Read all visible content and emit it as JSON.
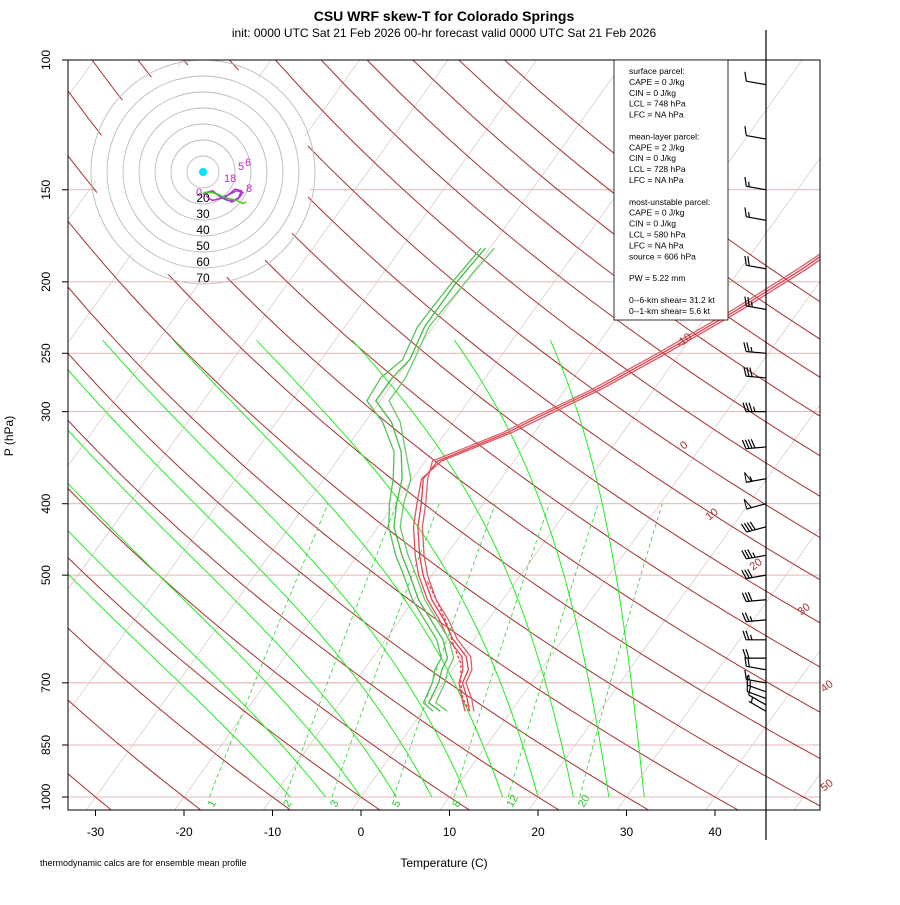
{
  "chart_data": {
    "type": "line",
    "title": "CSU WRF skew-T for Colorado Springs",
    "subtitle": "init: 0000 UTC Sat 21 Feb 2026     00-hr forecast valid 0000 UTC Sat 21 Feb 2026",
    "xlabel": "Temperature (C)",
    "ylabel": "P (hPa)",
    "footnote": "thermodynamic calcs are for ensemble mean profile",
    "x_ticks": [
      -30,
      -20,
      -10,
      0,
      10,
      20,
      30,
      40
    ],
    "pressure_ticks": [
      100,
      150,
      200,
      250,
      300,
      400,
      500,
      700,
      850,
      1000
    ],
    "xlim": [
      -33,
      46
    ],
    "plim": [
      1050,
      100
    ],
    "y_scale": "log",
    "dry_adiabat_labels": [
      "-10",
      "0",
      "10",
      "20",
      "30",
      "40",
      "50"
    ],
    "mixing_ratio_labels": [
      "1",
      "2",
      "3",
      "5",
      "8",
      "12",
      "20"
    ],
    "hodograph_ring_labels": [
      "20",
      "30",
      "40",
      "50",
      "60",
      "70"
    ],
    "stats": {
      "lines": [
        "surface parcel:",
        "CAPE = 0 J/kg",
        "CIN = 0 J/kg",
        "LCL = 748 hPa",
        "LFC = NA hPa",
        "",
        "mean-layer parcel:",
        "CAPE = 2 J/kg",
        "CIN = 0 J/kg",
        "LCL = 728 hPa",
        "LFC = NA hPa",
        "",
        "most-unstable parcel:",
        "CAPE = 0 J/kg",
        "CIN = 0 J/kg",
        "LCL = 580 hPa",
        "LFC = NA hPa",
        "source = 606 hPa",
        "",
        "PW =  5.22 mm",
        "",
        "0--6-km shear= 31.2 kt",
        "0--1-km shear= 5.6 kt"
      ]
    },
    "series": [
      {
        "kind": "temperature",
        "color": "#e0404a",
        "points": [
          [
            5.3,
            765
          ],
          [
            4,
            735
          ],
          [
            2.2,
            700
          ],
          [
            1.8,
            672
          ],
          [
            0.5,
            645
          ],
          [
            -2.5,
            610
          ],
          [
            -5,
            575
          ],
          [
            -8,
            540
          ],
          [
            -11,
            500
          ],
          [
            -13,
            470
          ],
          [
            -15.5,
            430
          ],
          [
            -17,
            400
          ],
          [
            -18.8,
            370
          ],
          [
            -18.6,
            350
          ],
          [
            -13,
            320
          ],
          [
            -10.8,
            305
          ],
          [
            -6.5,
            280
          ],
          [
            -2,
            250
          ],
          [
            3,
            218
          ],
          [
            7,
            192
          ],
          [
            11,
            165
          ],
          [
            12.2,
            150
          ],
          [
            13.5,
            140
          ],
          [
            15.5,
            128
          ],
          [
            17.5,
            115
          ],
          [
            19,
            108
          ]
        ]
      },
      {
        "kind": "temperature",
        "color": "#e05060",
        "points": [
          [
            4.8,
            765
          ],
          [
            3.4,
            735
          ],
          [
            1.8,
            700
          ],
          [
            1.2,
            672
          ],
          [
            0,
            645
          ],
          [
            -3,
            610
          ],
          [
            -5.5,
            575
          ],
          [
            -8.5,
            540
          ],
          [
            -11.5,
            500
          ],
          [
            -13.5,
            470
          ],
          [
            -16,
            430
          ],
          [
            -17.5,
            400
          ],
          [
            -19,
            370
          ],
          [
            -18.2,
            350
          ],
          [
            -12.5,
            320
          ],
          [
            -10.2,
            305
          ],
          [
            -6,
            280
          ],
          [
            -1.5,
            250
          ],
          [
            3.5,
            218
          ],
          [
            7.5,
            192
          ],
          [
            11.3,
            165
          ],
          [
            12.6,
            150
          ],
          [
            14,
            140
          ],
          [
            16.2,
            128
          ],
          [
            18.5,
            115
          ],
          [
            19.8,
            108
          ]
        ]
      },
      {
        "kind": "temperature",
        "color": "#d8606a",
        "points": [
          [
            5.8,
            765
          ],
          [
            4.5,
            735
          ],
          [
            2.6,
            700
          ],
          [
            2.2,
            672
          ],
          [
            1,
            645
          ],
          [
            -2,
            610
          ],
          [
            -4.5,
            575
          ],
          [
            -7.5,
            540
          ],
          [
            -10.5,
            500
          ],
          [
            -12.5,
            470
          ],
          [
            -15,
            430
          ],
          [
            -16.5,
            400
          ],
          [
            -18.3,
            370
          ],
          [
            -19.2,
            350
          ],
          [
            -13.5,
            320
          ],
          [
            -11.3,
            305
          ],
          [
            -7,
            280
          ],
          [
            -2.5,
            250
          ],
          [
            2.5,
            218
          ],
          [
            6.5,
            192
          ],
          [
            10.7,
            165
          ],
          [
            11.9,
            150
          ],
          [
            13.2,
            140
          ],
          [
            15,
            128
          ],
          [
            17,
            115
          ],
          [
            18.5,
            108
          ]
        ]
      },
      {
        "kind": "parcel",
        "color": "#e0404a",
        "dashed": true,
        "points": [
          [
            5.3,
            765
          ],
          [
            3.5,
            735
          ],
          [
            2,
            700
          ],
          [
            0.5,
            660
          ],
          [
            -2,
            620
          ],
          [
            -4.5,
            580
          ],
          [
            -7.5,
            540
          ],
          [
            -10,
            510
          ]
        ]
      },
      {
        "kind": "dewpoint",
        "color": "#44bb44",
        "points": [
          [
            2,
            765
          ],
          [
            0,
            745
          ],
          [
            -0.5,
            700
          ],
          [
            -1.2,
            672
          ],
          [
            -1.5,
            648
          ],
          [
            -3.5,
            612
          ],
          [
            -6.5,
            575
          ],
          [
            -9.5,
            540
          ],
          [
            -12.5,
            500
          ],
          [
            -15,
            470
          ],
          [
            -18.2,
            430
          ],
          [
            -19.8,
            400
          ],
          [
            -21.2,
            370
          ],
          [
            -23.5,
            340
          ],
          [
            -27,
            310
          ],
          [
            -30.5,
            290
          ],
          [
            -30.5,
            270
          ],
          [
            -30,
            255
          ],
          [
            -31,
            230
          ],
          [
            -31,
            200
          ],
          [
            -30.5,
            180
          ]
        ]
      },
      {
        "kind": "dewpoint",
        "color": "#66cc66",
        "points": [
          [
            2.8,
            765
          ],
          [
            0.8,
            745
          ],
          [
            0.2,
            700
          ],
          [
            -0.5,
            672
          ],
          [
            -0.8,
            648
          ],
          [
            -2.8,
            612
          ],
          [
            -5.8,
            575
          ],
          [
            -8.8,
            540
          ],
          [
            -11.8,
            500
          ],
          [
            -14.3,
            470
          ],
          [
            -17.5,
            430
          ],
          [
            -19,
            400
          ],
          [
            -20.2,
            370
          ],
          [
            -23,
            340
          ],
          [
            -26,
            310
          ],
          [
            -29,
            290
          ],
          [
            -29,
            270
          ],
          [
            -29.5,
            255
          ],
          [
            -30.5,
            230
          ],
          [
            -30,
            200
          ],
          [
            -29.5,
            180
          ]
        ]
      },
      {
        "kind": "dewpoint",
        "color": "#55c055",
        "points": [
          [
            1.2,
            765
          ],
          [
            -0.6,
            745
          ],
          [
            -1.2,
            700
          ],
          [
            -2,
            672
          ],
          [
            -2.2,
            648
          ],
          [
            -4.2,
            612
          ],
          [
            -7.2,
            575
          ],
          [
            -10.2,
            540
          ],
          [
            -13.2,
            500
          ],
          [
            -15.7,
            470
          ],
          [
            -18.8,
            430
          ],
          [
            -20.6,
            400
          ],
          [
            -22.2,
            370
          ],
          [
            -24.3,
            340
          ],
          [
            -28,
            310
          ],
          [
            -31.5,
            290
          ],
          [
            -31.8,
            270
          ],
          [
            -30.8,
            255
          ],
          [
            -31.8,
            230
          ],
          [
            -31.5,
            200
          ],
          [
            -31,
            180
          ]
        ]
      }
    ],
    "wind_barbs": [
      {
        "p": 765,
        "dir": 300,
        "kt": 5
      },
      {
        "p": 750,
        "dir": 300,
        "kt": 10
      },
      {
        "p": 735,
        "dir": 290,
        "kt": 10
      },
      {
        "p": 720,
        "dir": 290,
        "kt": 15
      },
      {
        "p": 700,
        "dir": 280,
        "kt": 15
      },
      {
        "p": 672,
        "dir": 280,
        "kt": 20
      },
      {
        "p": 648,
        "dir": 270,
        "kt": 20
      },
      {
        "p": 612,
        "dir": 270,
        "kt": 25
      },
      {
        "p": 575,
        "dir": 265,
        "kt": 25
      },
      {
        "p": 540,
        "dir": 265,
        "kt": 30
      },
      {
        "p": 500,
        "dir": 260,
        "kt": 30
      },
      {
        "p": 470,
        "dir": 260,
        "kt": 35
      },
      {
        "p": 430,
        "dir": 255,
        "kt": 40
      },
      {
        "p": 400,
        "dir": 255,
        "kt": 50
      },
      {
        "p": 370,
        "dir": 260,
        "kt": 55
      },
      {
        "p": 335,
        "dir": 265,
        "kt": 40
      },
      {
        "p": 300,
        "dir": 270,
        "kt": 35
      },
      {
        "p": 270,
        "dir": 275,
        "kt": 30
      },
      {
        "p": 250,
        "dir": 275,
        "kt": 25
      },
      {
        "p": 218,
        "dir": 280,
        "kt": 25
      },
      {
        "p": 192,
        "dir": 280,
        "kt": 20
      },
      {
        "p": 165,
        "dir": 280,
        "kt": 15
      },
      {
        "p": 150,
        "dir": 280,
        "kt": 15
      },
      {
        "p": 128,
        "dir": 280,
        "kt": 10
      },
      {
        "p": 108,
        "dir": 280,
        "kt": 10
      }
    ],
    "hodograph": {
      "ring_spacing_kt": 10,
      "traces": [
        {
          "color": "#cc22cc",
          "uv": [
            [
              0,
              0
            ],
            [
              2,
              -1
            ],
            [
              6,
              -2
            ],
            [
              10,
              1
            ],
            [
              14,
              3
            ],
            [
              18,
              5
            ],
            [
              22,
              3
            ],
            [
              24,
              -2
            ],
            [
              20,
              -3
            ],
            [
              14,
              2
            ],
            [
              10,
              3
            ],
            [
              6,
              4
            ],
            [
              4,
              3
            ],
            [
              2,
              1
            ]
          ]
        },
        {
          "color": "#9944dd",
          "uv": [
            [
              0,
              0
            ],
            [
              3,
              -1
            ],
            [
              7,
              -1
            ],
            [
              11,
              2
            ],
            [
              15,
              4
            ],
            [
              19,
              4
            ],
            [
              23,
              2
            ],
            [
              25,
              -1
            ],
            [
              21,
              -2
            ],
            [
              15,
              1
            ],
            [
              11,
              2
            ]
          ]
        },
        {
          "color": "#44cc22",
          "uv": [
            [
              0,
              0
            ],
            [
              1,
              -1
            ],
            [
              5,
              -1
            ],
            [
              9,
              0
            ],
            [
              13,
              2
            ],
            [
              17,
              3
            ],
            [
              21,
              4
            ],
            [
              25,
              6
            ],
            [
              27,
              5
            ]
          ]
        }
      ],
      "labels": [
        "0",
        "5",
        "18",
        "8",
        "6"
      ]
    }
  }
}
